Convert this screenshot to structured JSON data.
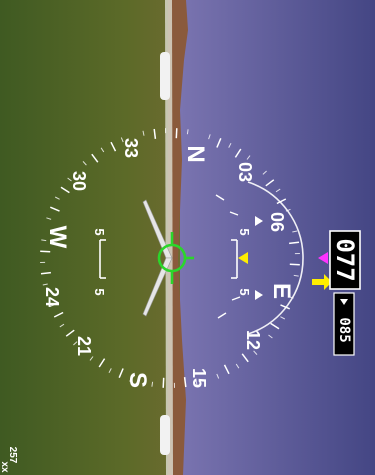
{
  "heading_box": {
    "value": "077",
    "color": "#ffffff",
    "bg": "#000000"
  },
  "heading_bug": {
    "value": "085",
    "color": "#ffffff",
    "bg": "#000000"
  },
  "compass": {
    "cardinals": {
      "north": "N",
      "east": "E",
      "south": "S",
      "west": "W"
    },
    "numbers": [
      "03",
      "06",
      "12",
      "15",
      "21",
      "24",
      "30",
      "33"
    ]
  },
  "bank_marks": {
    "left_upper": "5",
    "left_lower": "5",
    "right_upper": "5",
    "right_lower": "5"
  },
  "corner_values": {
    "bottom_a": "257",
    "bottom_b": "xx"
  },
  "colors": {
    "sky_top": "#4b4e8c",
    "sky_bottom": "#6f6aa8",
    "ground_top": "#6b6a2a",
    "ground_bottom": "#3b5d22",
    "horizon_ridge": "#8a5a3c",
    "flight_path_marker": "#2bd62b",
    "heading_bug_color": "#ff33ff",
    "wind_arrow": "#ffee00",
    "track_marker": "#ffee00"
  }
}
